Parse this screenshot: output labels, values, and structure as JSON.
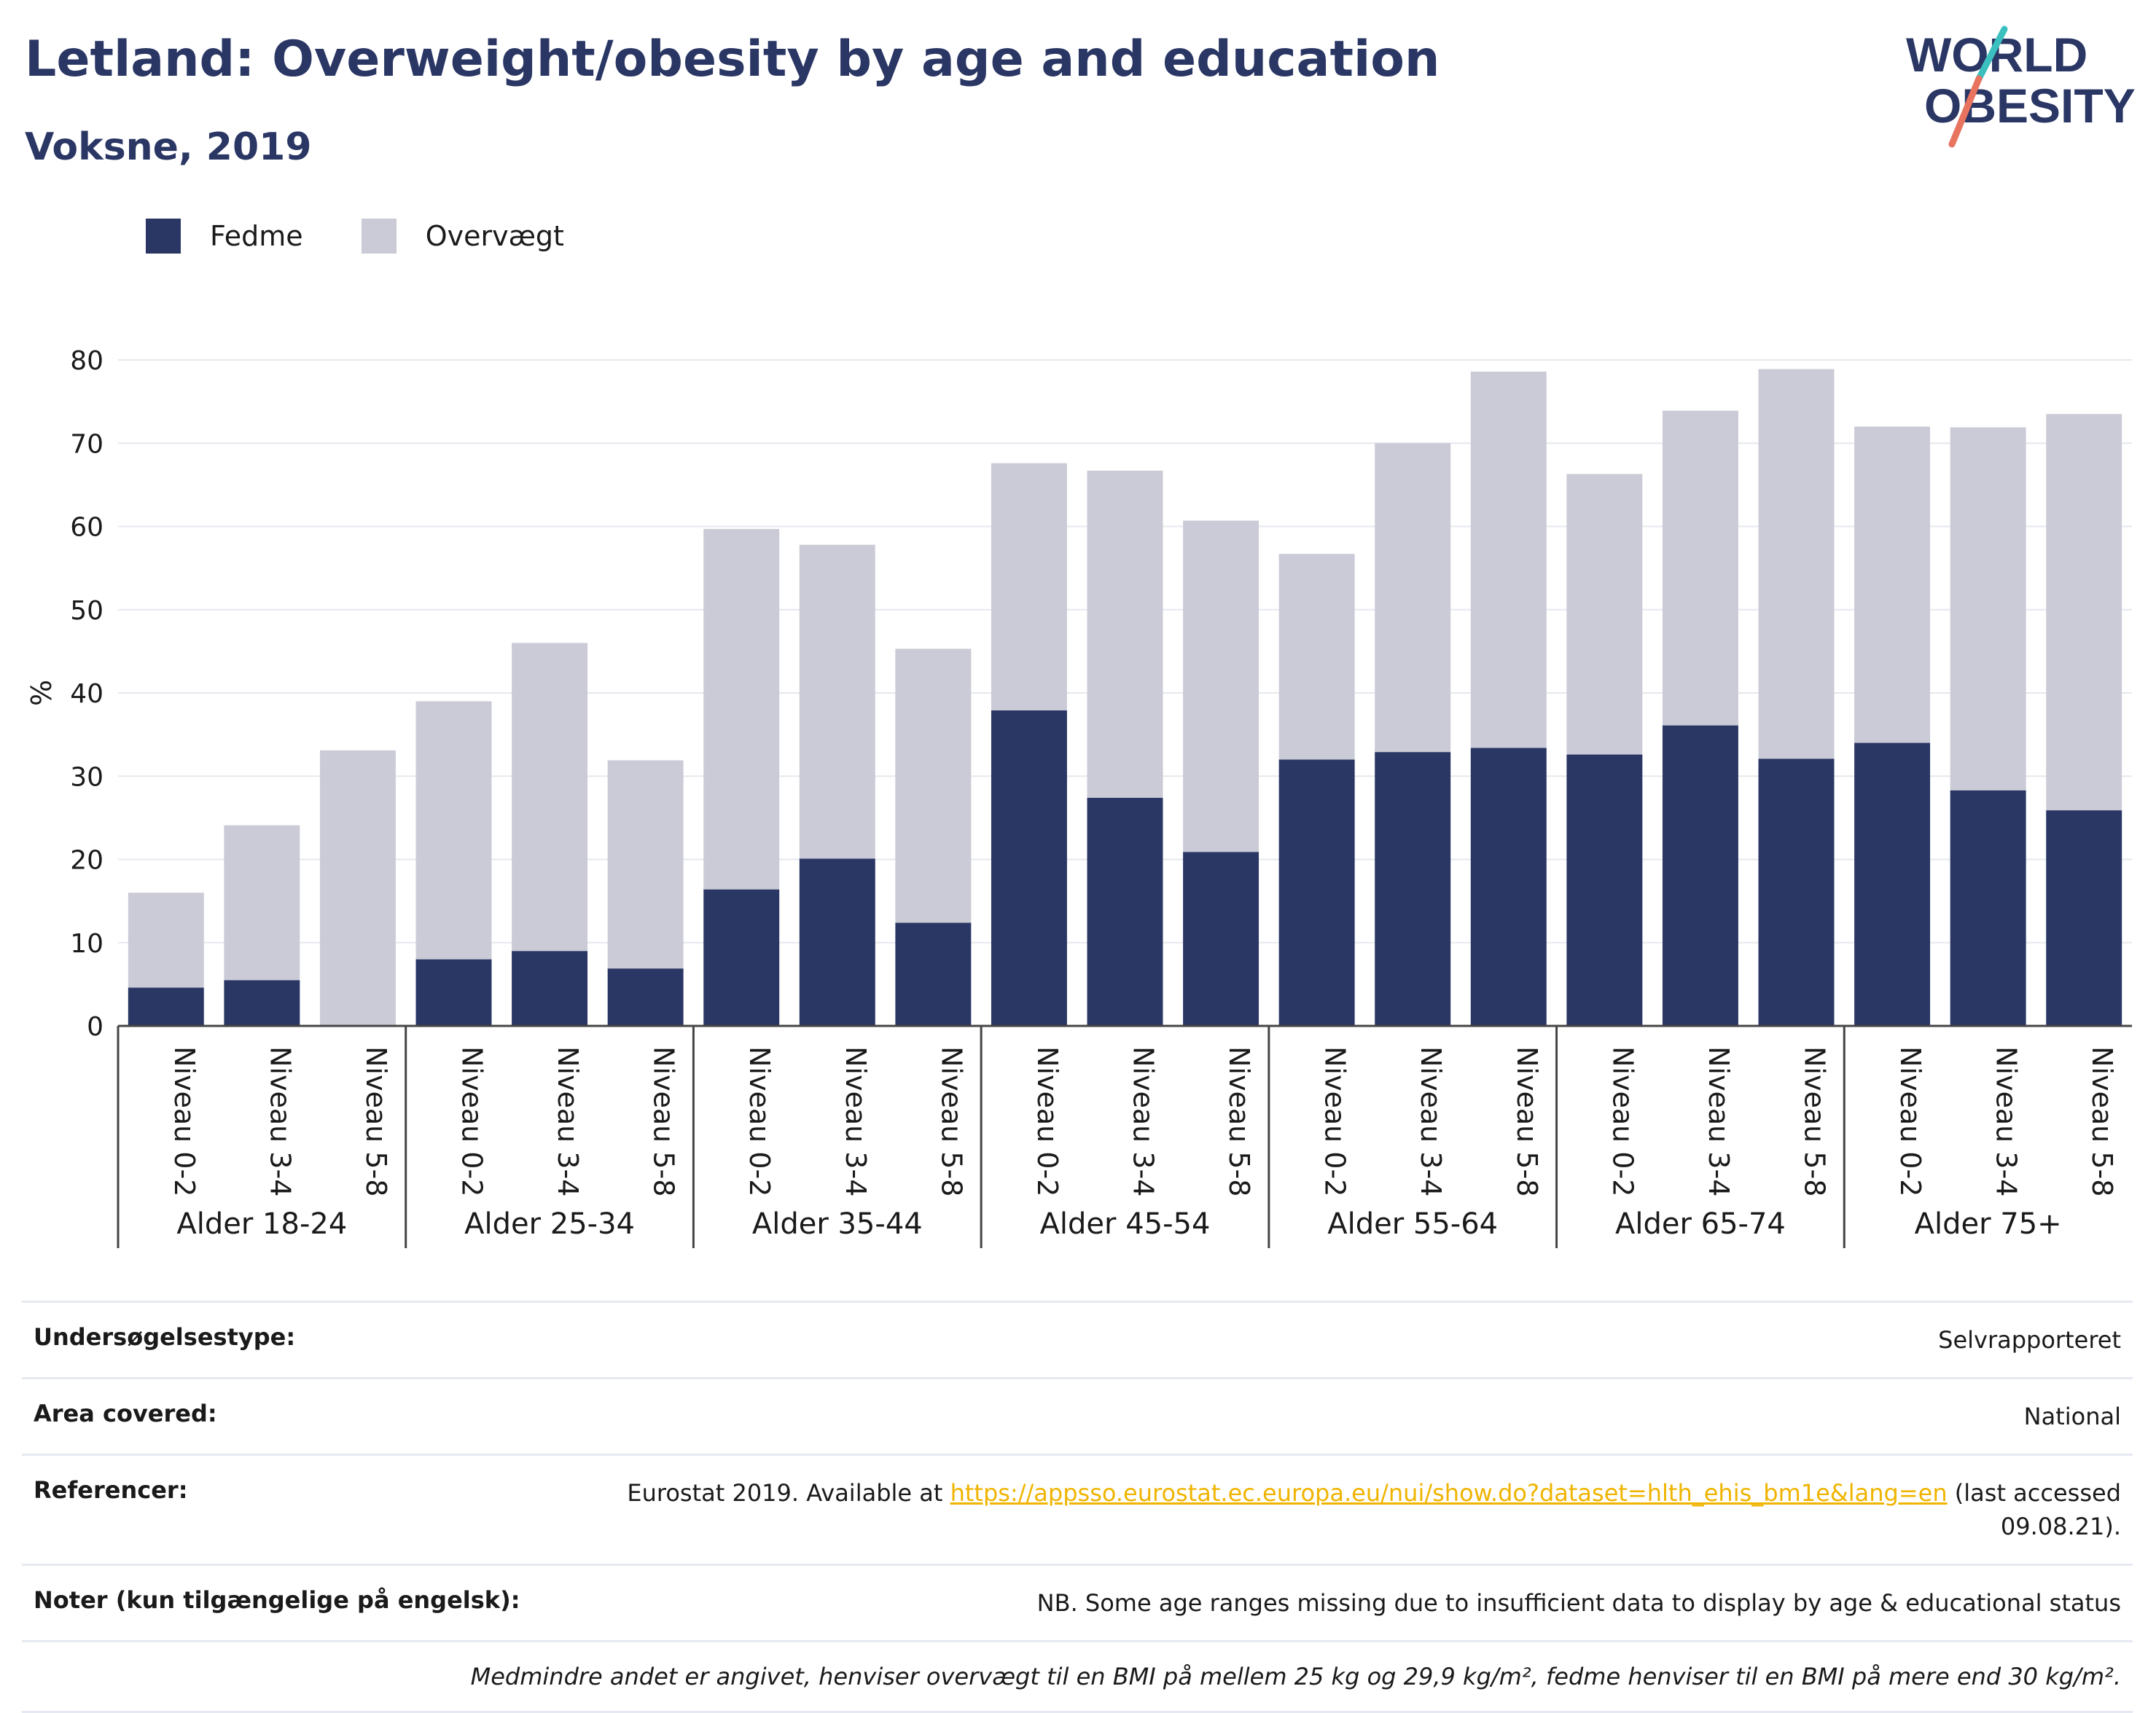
{
  "title": "Letland: Overweight/obesity by age and education",
  "subtitle": "Voksne, 2019",
  "logo": {
    "line1": "WORLD",
    "line2": "OBESITY"
  },
  "colors": {
    "fedme": "#2a3664",
    "overvaegt": "#cacbd6",
    "title": "#2a3664",
    "link": "#f0b400"
  },
  "chart_data": {
    "type": "bar",
    "stacked": true,
    "ylabel": "%",
    "ylim": [
      0,
      80
    ],
    "yticks": [
      0,
      10,
      20,
      30,
      40,
      50,
      60,
      70,
      80
    ],
    "grid": true,
    "legend_position": "top-left",
    "groups": [
      {
        "label": "Alder 18-24",
        "categories": [
          "Niveau 0-2",
          "Niveau 3-4",
          "Niveau 5-8"
        ]
      },
      {
        "label": "Alder 25-34",
        "categories": [
          "Niveau 0-2",
          "Niveau 3-4",
          "Niveau 5-8"
        ]
      },
      {
        "label": "Alder 35-44",
        "categories": [
          "Niveau 0-2",
          "Niveau 3-4",
          "Niveau 5-8"
        ]
      },
      {
        "label": "Alder 45-54",
        "categories": [
          "Niveau 0-2",
          "Niveau 3-4",
          "Niveau 5-8"
        ]
      },
      {
        "label": "Alder 55-64",
        "categories": [
          "Niveau 0-2",
          "Niveau 3-4",
          "Niveau 5-8"
        ]
      },
      {
        "label": "Alder 65-74",
        "categories": [
          "Niveau 0-2",
          "Niveau 3-4",
          "Niveau 5-8"
        ]
      },
      {
        "label": "Alder 75+",
        "categories": [
          "Niveau 0-2",
          "Niveau 3-4",
          "Niveau 5-8"
        ]
      }
    ],
    "series": [
      {
        "name": "Fedme",
        "values": [
          4.6,
          5.5,
          0,
          8.0,
          9.0,
          6.9,
          16.4,
          20.1,
          12.4,
          37.9,
          27.4,
          20.9,
          32.0,
          32.9,
          33.4,
          32.6,
          36.1,
          32.1,
          34.0,
          28.3,
          25.9
        ]
      },
      {
        "name": "Overvægt",
        "values": [
          11.4,
          18.6,
          33.1,
          31.0,
          37.0,
          25.0,
          43.3,
          37.7,
          32.9,
          29.7,
          39.3,
          39.8,
          24.7,
          37.1,
          45.2,
          33.7,
          37.8,
          46.8,
          38.0,
          43.6,
          47.6
        ]
      }
    ]
  },
  "meta": {
    "rows": [
      {
        "key": "Undersøgelsestype:",
        "value": "Selvrapporteret"
      },
      {
        "key": "Area covered:",
        "value": "National"
      },
      {
        "key": "Referencer:",
        "value_prefix": "Eurostat 2019. Available at ",
        "link": "https://appsso.eurostat.ec.europa.eu/nui/show.do?dataset=hlth_ehis_bm1e&lang=en",
        "value_suffix": " (last accessed 09.08.21)."
      },
      {
        "key": "Noter (kun tilgængelige på engelsk):",
        "value": "NB. Some age ranges missing due to insufficient data to display by age & educational status"
      }
    ],
    "footnote": "Medmindre andet er angivet, henviser overvægt til en BMI på mellem 25 kg og 29,9 kg/m², fedme henviser til en BMI på mere end 30 kg/m²."
  }
}
